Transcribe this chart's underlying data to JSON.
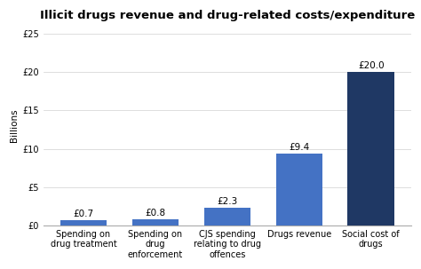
{
  "title": "Illicit drugs revenue and drug-related costs/expenditure",
  "categories": [
    "Spending on\ndrug treatment",
    "Spending on\ndrug\nenforcement",
    "CJS spending\nrelating to drug\noffences",
    "Drugs revenue",
    "Social cost of\ndrugs"
  ],
  "values": [
    0.7,
    0.8,
    2.3,
    9.4,
    20.0
  ],
  "bar_colors": [
    "#4472c4",
    "#4472c4",
    "#4472c4",
    "#4472c4",
    "#1f3864"
  ],
  "bar_labels": [
    "£0.7",
    "£0.8",
    "£2.3",
    "£9.4",
    "£20.0"
  ],
  "ylabel": "Billions",
  "ylim": [
    0,
    26
  ],
  "yticks": [
    0,
    5,
    10,
    15,
    20,
    25
  ],
  "ytick_labels": [
    "£0",
    "£5",
    "£10",
    "£15",
    "£20",
    "£25"
  ],
  "background_color": "#ffffff",
  "title_fontsize": 9.5,
  "label_fontsize": 7.5,
  "tick_fontsize": 7,
  "ylabel_fontsize": 7.5
}
